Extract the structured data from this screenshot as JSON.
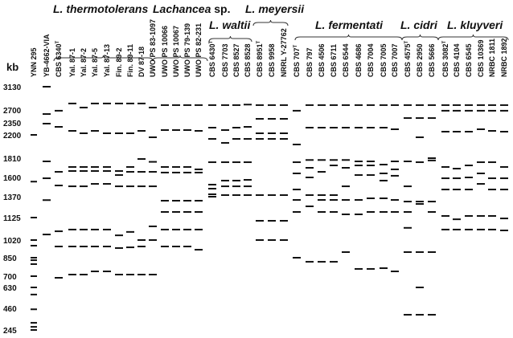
{
  "axis": {
    "unit_label": "kb",
    "ticks": [
      3130,
      2700,
      2350,
      2200,
      1810,
      1600,
      1370,
      1125,
      1020,
      850,
      700,
      630,
      460,
      245
    ]
  },
  "colors": {
    "band": "#111111",
    "text": "#111111"
  },
  "groups": [
    {
      "name": "L. thermotolerans",
      "italic": "L. thermotolerans",
      "plain": ""
    },
    {
      "name": "Lachancea sp.",
      "italic": "Lachancea",
      "plain": " sp."
    },
    {
      "name": "L. waltii",
      "italic": "L. waltii",
      "plain": ""
    },
    {
      "name": "L. meyersii",
      "italic": "L. meyersii",
      "plain": ""
    },
    {
      "name": "L. fermentati",
      "italic": "L. fermentati",
      "plain": ""
    },
    {
      "name": "L. cidri",
      "italic": "L. cidri",
      "plain": ""
    },
    {
      "name": "L. kluyveri",
      "italic": "L. kluyveri",
      "plain": ""
    }
  ],
  "lanes": [
    {
      "label": "YNN 295",
      "sup": "",
      "bands": [
        2200,
        1550,
        1125,
        1020,
        966,
        850,
        830,
        798,
        700,
        630,
        572,
        450,
        316,
        276,
        245
      ]
    },
    {
      "label": "YB-4662-VIA",
      "sup": "",
      "bands": [
        3130,
        2590,
        2340,
        1775,
        1590,
        1330,
        1046
      ]
    },
    {
      "label": "CBS 6340",
      "sup": "T",
      "bands": [
        2680,
        2300,
        1661,
        1504,
        1061,
        958,
        690
      ]
    },
    {
      "label": "Yal. 87-1",
      "sup": "",
      "bands": [
        2820,
        2250,
        1714,
        1670,
        1494,
        1069,
        958,
        713
      ]
    },
    {
      "label": "Yal. 87-2",
      "sup": "",
      "bands": [
        2745,
        2220,
        1714,
        1670,
        1494,
        1069,
        958,
        713
      ]
    },
    {
      "label": "Yal. 87-5",
      "sup": "",
      "bands": [
        2820,
        2250,
        1714,
        1670,
        1523,
        1069,
        958,
        739
      ]
    },
    {
      "label": "Yal. 87-13",
      "sup": "",
      "bands": [
        2820,
        2220,
        1714,
        1670,
        1523,
        1069,
        958,
        739
      ]
    },
    {
      "label": "Fin. 89-2",
      "sup": "",
      "bands": [
        2820,
        2220,
        1670,
        1626,
        1494,
        1042,
        943,
        713
      ]
    },
    {
      "label": "Fin. 89-11",
      "sup": "",
      "bands": [
        2820,
        2220,
        1714,
        1661,
        1494,
        1058,
        950,
        713
      ]
    },
    {
      "label": "DV 87-18",
      "sup": "",
      "bands": [
        2820,
        2250,
        1801,
        1661,
        1494,
        1020,
        958,
        713
      ]
    },
    {
      "label": "UWO PS 83-1097",
      "sup": "",
      "bands": [
        2745,
        2160,
        1770,
        1661,
        1494,
        1084,
        1020,
        713
      ]
    },
    {
      "label": "UWO PS 10066",
      "sup": "",
      "bands": [
        2790,
        2260,
        1714,
        1653,
        1323,
        1191,
        1069,
        958
      ]
    },
    {
      "label": "UWO PS 10067",
      "sup": "",
      "bands": [
        2790,
        2260,
        1714,
        1653,
        1323,
        1191,
        1069,
        958
      ]
    },
    {
      "label": "UWO PS 79-139",
      "sup": "",
      "bands": [
        2790,
        2260,
        1714,
        1653,
        1323,
        1191,
        1069,
        958
      ]
    },
    {
      "label": "UWO PS 82-231",
      "sup": "",
      "bands": [
        2790,
        2250,
        1688,
        1653,
        1323,
        1191,
        1069,
        927
      ]
    },
    {
      "label": "CBS 6430",
      "sup": "T",
      "bands": [
        2790,
        2290,
        2133,
        1766,
        1514,
        1466,
        1399,
        1370
      ]
    },
    {
      "label": "CBS 7703",
      "sup": "",
      "bands": [
        2790,
        2260,
        2066,
        1766,
        1562,
        1494,
        1389
      ]
    },
    {
      "label": "CBS 8527",
      "sup": "",
      "bands": [
        2790,
        2290,
        2133,
        1766,
        1562,
        1494,
        1389
      ]
    },
    {
      "label": "CBS 8528",
      "sup": "",
      "bands": [
        2800,
        2300,
        2133,
        1766,
        1571,
        1494,
        1389
      ]
    },
    {
      "label": "CBS 8951",
      "sup": "T",
      "bands": [
        2790,
        2459,
        2220,
        2133,
        1389,
        1110,
        1020
      ]
    },
    {
      "label": "CBS 9958",
      "sup": "",
      "bands": [
        2790,
        2459,
        2220,
        2133,
        1389,
        1110,
        1020
      ]
    },
    {
      "label": "NRRL Y-27762",
      "sup": "",
      "bands": [
        2790,
        2459,
        2220,
        2133,
        1389,
        1110,
        1020
      ]
    },
    {
      "label": "CBS 707",
      "sup": "T",
      "bands": [
        2680,
        2039,
        1766,
        1644,
        1456,
        1332,
        1191,
        850
      ]
    },
    {
      "label": "CBS 797",
      "sup": "",
      "bands": [
        2790,
        2290,
        1790,
        1705,
        1600,
        1389,
        1257,
        817
      ]
    },
    {
      "label": "CBS 4506",
      "sup": "",
      "bands": [
        2790,
        2290,
        1790,
        1661,
        1389,
        1332,
        1191,
        817
      ]
    },
    {
      "label": "CBS 6711",
      "sup": "",
      "bands": [
        2790,
        2290,
        1790,
        1731,
        1389,
        1332,
        1191,
        817
      ]
    },
    {
      "label": "CBS 6544",
      "sup": "",
      "bands": [
        2790,
        2290,
        1790,
        1705,
        1494,
        1332,
        1163,
        904
      ]
    },
    {
      "label": "CBS 4686",
      "sup": "",
      "bands": [
        2790,
        2290,
        1775,
        1731,
        1626,
        1332,
        1163,
        759
      ]
    },
    {
      "label": "CBS 7004",
      "sup": "",
      "bands": [
        2790,
        2290,
        1775,
        1731,
        1626,
        1351,
        1191,
        759
      ]
    },
    {
      "label": "CBS 7005",
      "sup": "",
      "bands": [
        2790,
        2290,
        1740,
        1644,
        1562,
        1351,
        1191,
        765
      ]
    },
    {
      "label": "CBS 7007",
      "sup": "",
      "bands": [
        2790,
        2270,
        1775,
        1688,
        1618,
        1332,
        1191,
        739
      ]
    },
    {
      "label": "CBS 4575",
      "sup": "T",
      "bands": [
        2790,
        2480,
        1775,
        1494,
        1313,
        1191,
        1077,
        904,
        396
      ]
    },
    {
      "label": "CBS 2950",
      "sup": "",
      "bands": [
        2790,
        2480,
        2160,
        1766,
        1313,
        1285,
        904,
        630,
        396
      ]
    },
    {
      "label": "CBS 5666",
      "sup": "",
      "bands": [
        2790,
        2480,
        1810,
        1785,
        1313,
        1191,
        904,
        396
      ]
    },
    {
      "label": "CBS 3082",
      "sup": "T",
      "bands": [
        2790,
        2680,
        2240,
        1714,
        1590,
        1456,
        1144,
        1069
      ]
    },
    {
      "label": "CBS 4104",
      "sup": "",
      "bands": [
        2790,
        2680,
        2240,
        1696,
        1590,
        1456,
        1117,
        1069
      ]
    },
    {
      "label": "CBS 6545",
      "sup": "",
      "bands": [
        2790,
        2680,
        2240,
        1731,
        1600,
        1456,
        1144,
        1069
      ]
    },
    {
      "label": "CBS 10369",
      "sup": "",
      "bands": [
        2790,
        2680,
        2270,
        1766,
        1644,
        1523,
        1144,
        1069
      ]
    },
    {
      "label": "NRBC 1811",
      "sup": "",
      "bands": [
        2790,
        2680,
        2250,
        1766,
        1590,
        1456,
        1144,
        1069
      ]
    },
    {
      "label": "NRBC 1892",
      "sup": "",
      "bands": [
        2790,
        2680,
        2240,
        1714,
        1590,
        1456,
        1121,
        1065
      ]
    }
  ]
}
